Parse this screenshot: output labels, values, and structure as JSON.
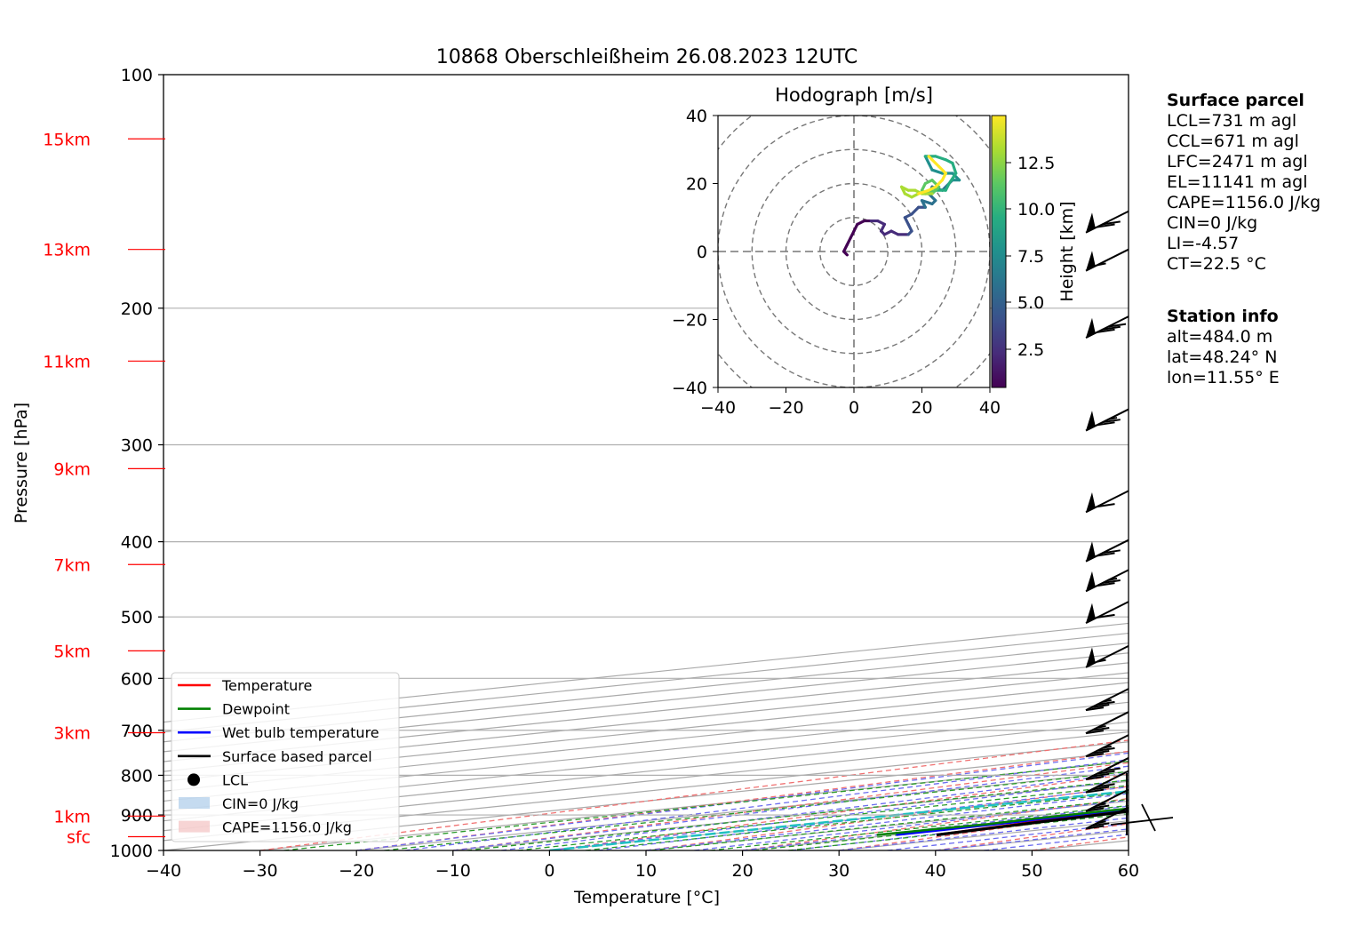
{
  "chart_data": {
    "type": "skew-t",
    "title": "10868 Oberschleißheim 26.08.2023 12UTC",
    "xlabel": "Temperature [°C]",
    "ylabel": "Pressure [hPa]",
    "xlim": [
      -40,
      60
    ],
    "ylim": [
      1000,
      100
    ],
    "x_ticks": [
      -40,
      -30,
      -20,
      -10,
      0,
      10,
      20,
      30,
      40,
      50,
      60
    ],
    "p_ticks": [
      1000,
      900,
      800,
      700,
      600,
      500,
      400,
      300,
      200,
      100
    ],
    "heights": [
      {
        "label": "sfc",
        "p": 960
      },
      {
        "label": "1km",
        "p": 903
      },
      {
        "label": "3km",
        "p": 705
      },
      {
        "label": "5km",
        "p": 553
      },
      {
        "label": "7km",
        "p": 428
      },
      {
        "label": "9km",
        "p": 322
      },
      {
        "label": "11km",
        "p": 234
      },
      {
        "label": "13km",
        "p": 168
      },
      {
        "label": "15km",
        "p": 121
      }
    ],
    "series": [
      {
        "name": "Temperature",
        "color": "#ff0000",
        "points": [
          [
            24.4,
            955
          ],
          [
            23,
            940
          ],
          [
            21.5,
            920
          ],
          [
            20.6,
            900
          ],
          [
            19.8,
            880
          ],
          [
            18.9,
            850
          ],
          [
            19,
            820
          ],
          [
            18.6,
            800
          ],
          [
            20,
            790
          ],
          [
            20.2,
            770
          ],
          [
            18.4,
            745
          ],
          [
            17.6,
            725
          ],
          [
            16.5,
            708
          ],
          [
            15.5,
            690
          ],
          [
            14.7,
            665
          ],
          [
            13.2,
            640
          ],
          [
            12,
            620
          ],
          [
            10.5,
            595
          ],
          [
            9.3,
            565
          ],
          [
            8.6,
            540
          ],
          [
            8.3,
            520
          ],
          [
            8.5,
            503
          ],
          [
            7.3,
            488
          ],
          [
            6.4,
            470
          ],
          [
            5.8,
            445
          ],
          [
            5.2,
            420
          ],
          [
            4.5,
            395
          ],
          [
            2.6,
            367
          ],
          [
            1.4,
            355
          ],
          [
            -0.5,
            340
          ],
          [
            -2,
            325
          ],
          [
            -3.4,
            310
          ],
          [
            -5.2,
            295
          ],
          [
            -6.8,
            275
          ],
          [
            -8.3,
            256
          ],
          [
            -9.8,
            238
          ],
          [
            -10.3,
            228
          ],
          [
            -10.8,
            219
          ],
          [
            -10.1,
            212
          ],
          [
            -9.5,
            206
          ],
          [
            -8,
            200
          ],
          [
            -6,
            196
          ],
          [
            -5.3,
            185
          ],
          [
            -3.6,
            177
          ],
          [
            -5.2,
            167
          ],
          [
            -3.2,
            158
          ],
          [
            -2.5,
            150
          ],
          [
            -1.5,
            142
          ],
          [
            -0.4,
            135
          ],
          [
            -0.7,
            128
          ],
          [
            0.7,
            124
          ],
          [
            2.6,
            120
          ]
        ]
      },
      {
        "name": "Dewpoint",
        "color": "#008000",
        "points": [
          [
            18.2,
            955
          ],
          [
            18.4,
            935
          ],
          [
            18.8,
            925
          ],
          [
            18,
            910
          ],
          [
            17.6,
            890
          ],
          [
            17.7,
            862
          ],
          [
            17,
            835
          ],
          [
            18.4,
            820
          ],
          [
            16.5,
            810
          ],
          [
            13.2,
            795
          ],
          [
            12.7,
            775
          ],
          [
            11,
            760
          ],
          [
            10.3,
            740
          ],
          [
            8.2,
            720
          ],
          [
            8.5,
            710
          ],
          [
            7.5,
            690
          ],
          [
            6.2,
            675
          ],
          [
            3.8,
            668
          ],
          [
            2,
            660
          ],
          [
            3.8,
            645
          ],
          [
            4,
            630
          ],
          [
            2,
            615
          ],
          [
            0.2,
            600
          ],
          [
            -0.8,
            582
          ],
          [
            -2,
            560
          ],
          [
            -0.7,
            550
          ],
          [
            -2.2,
            540
          ],
          [
            -3,
            530
          ],
          [
            -4.2,
            520
          ],
          [
            -2.8,
            508
          ],
          [
            -10.1,
            503
          ],
          [
            -4.8,
            500
          ],
          [
            -14,
            497
          ],
          [
            -9.6,
            490
          ],
          [
            -6.9,
            478
          ],
          [
            -2.5,
            466
          ],
          [
            -3,
            455
          ],
          [
            0,
            445
          ],
          [
            -3.5,
            430
          ],
          [
            -5,
            417
          ],
          [
            -5.9,
            405
          ],
          [
            -7.9,
            390
          ],
          [
            -9.2,
            378
          ],
          [
            -11.8,
            365
          ],
          [
            -14.7,
            357
          ],
          [
            -15.5,
            345
          ],
          [
            -16.9,
            332
          ],
          [
            -19.3,
            320
          ],
          [
            -16.5,
            310
          ],
          [
            -15.3,
            296
          ],
          [
            -16.6,
            281
          ],
          [
            -16.3,
            267
          ],
          [
            -17.6,
            258
          ],
          [
            -19.5,
            248
          ],
          [
            -20.3,
            237
          ],
          [
            -22.4,
            225
          ],
          [
            -23.7,
            213
          ],
          [
            -24.6,
            203
          ],
          [
            -26,
            193
          ],
          [
            -25.9,
            182
          ],
          [
            -25.5,
            172
          ],
          [
            -27.1,
            163
          ],
          [
            -27.5,
            155
          ],
          [
            -27,
            146
          ],
          [
            -26,
            138
          ],
          [
            -24.6,
            130
          ],
          [
            -23,
            122
          ]
        ]
      },
      {
        "name": "Wet bulb temperature",
        "color": "#0000ff",
        "points": [
          [
            20.2,
            955
          ],
          [
            19.6,
            920
          ],
          [
            19.3,
            890
          ],
          [
            18.6,
            862
          ],
          [
            17.4,
            820
          ],
          [
            16.9,
            800
          ],
          [
            16.3,
            780
          ],
          [
            15.5,
            760
          ],
          [
            14.7,
            742
          ],
          [
            13.8,
            722
          ],
          [
            12.6,
            708
          ],
          [
            11.1,
            690
          ],
          [
            10.1,
            675
          ],
          [
            9.3,
            650
          ],
          [
            8.4,
            632
          ],
          [
            8.2,
            610
          ],
          [
            7.3,
            590
          ],
          [
            6.1,
            565
          ],
          [
            5.3,
            545
          ],
          [
            4.6,
            525
          ],
          [
            4.2,
            505
          ],
          [
            3.8,
            493
          ],
          [
            3.3,
            470
          ],
          [
            3.4,
            445
          ],
          [
            3,
            420
          ],
          [
            1.9,
            405
          ],
          [
            0.5,
            390
          ],
          [
            -1,
            375
          ],
          [
            -3,
            355
          ],
          [
            -5.5,
            330
          ],
          [
            -7.6,
            305
          ],
          [
            -9.3,
            280
          ],
          [
            -10.4,
            258
          ],
          [
            -11.2,
            240
          ],
          [
            -11.2,
            225
          ],
          [
            -10.3,
            213
          ],
          [
            -9.5,
            205
          ],
          [
            -8.1,
            200
          ],
          [
            -6,
            196
          ],
          [
            -5.4,
            185
          ],
          [
            -3.8,
            177
          ],
          [
            -5.3,
            167
          ],
          [
            -3.3,
            158
          ],
          [
            -2.6,
            150
          ],
          [
            -1.6,
            142
          ],
          [
            -0.5,
            135
          ],
          [
            -0.8,
            128
          ],
          [
            0.6,
            124
          ],
          [
            2.5,
            120
          ]
        ]
      },
      {
        "name": "Surface based parcel",
        "color": "#000000",
        "points": [
          [
            24.4,
            955
          ],
          [
            22,
            920
          ],
          [
            19.8,
            880
          ],
          [
            19.5,
            850
          ],
          [
            18.7,
            800
          ],
          [
            17.7,
            750
          ],
          [
            16.6,
            700
          ],
          [
            15.2,
            650
          ],
          [
            13.5,
            600
          ],
          [
            11.5,
            550
          ],
          [
            9,
            500
          ],
          [
            5.8,
            450
          ],
          [
            1.7,
            400
          ],
          [
            -3.5,
            350
          ],
          [
            -10,
            300
          ],
          [
            -18.5,
            250
          ],
          [
            -23.5,
            225
          ],
          [
            -28,
            205
          ],
          [
            -30.5,
            190
          ],
          [
            -33,
            175
          ],
          [
            -35,
            160
          ],
          [
            -36.5,
            145
          ],
          [
            -37,
            135
          ],
          [
            -37,
            130
          ],
          [
            -36.8,
            125
          ],
          [
            -36.5,
            120
          ]
        ]
      }
    ],
    "lcl": {
      "t": 19.8,
      "p": 880
    },
    "legend": [
      "Temperature",
      "Dewpoint",
      "Wet bulb temperature",
      "Surface based parcel",
      "LCL",
      "CIN=0 J/kg",
      "CAPE=1156.0 J/kg"
    ],
    "legend_position": "lower-left",
    "wind_barbs": [
      {
        "p": 880,
        "speed": 25
      },
      {
        "p": 835,
        "speed": 25
      },
      {
        "p": 790,
        "speed": 30
      },
      {
        "p": 760,
        "speed": 40
      },
      {
        "p": 710,
        "speed": 35
      },
      {
        "p": 663,
        "speed": 25
      },
      {
        "p": 619,
        "speed": 35
      },
      {
        "p": 545,
        "speed": 55
      },
      {
        "p": 478,
        "speed": 60
      },
      {
        "p": 435,
        "speed": 75
      },
      {
        "p": 398,
        "speed": 70
      },
      {
        "p": 344,
        "speed": 60
      },
      {
        "p": 270,
        "speed": 75
      },
      {
        "p": 205,
        "speed": 80
      },
      {
        "p": 168,
        "speed": 55
      },
      {
        "p": 150,
        "speed": 70
      }
    ],
    "hodograph": {
      "title": "Hodograph [m/s]",
      "xlim": [
        -40,
        40
      ],
      "ylim": [
        -40,
        40
      ],
      "ticks": [
        -40,
        -20,
        0,
        20,
        40
      ],
      "colorbar_label": "Height [km]",
      "colorbar_ticks": [
        "2.5",
        "5.0",
        "7.5",
        "10.0",
        "12.5"
      ],
      "points": [
        [
          -2,
          -1
        ],
        [
          -3,
          0
        ],
        [
          -2,
          2
        ],
        [
          -1,
          4
        ],
        [
          0,
          6
        ],
        [
          1,
          8
        ],
        [
          3,
          9
        ],
        [
          5,
          9
        ],
        [
          7,
          9
        ],
        [
          9,
          8
        ],
        [
          8,
          6
        ],
        [
          9,
          5
        ],
        [
          11,
          6
        ],
        [
          13,
          5
        ],
        [
          16,
          5
        ],
        [
          17,
          6
        ],
        [
          16,
          8
        ],
        [
          15,
          10
        ],
        [
          17,
          11
        ],
        [
          19,
          13
        ],
        [
          21,
          13
        ],
        [
          20,
          15
        ],
        [
          23,
          14
        ],
        [
          24,
          15
        ],
        [
          22,
          17
        ],
        [
          23,
          19
        ],
        [
          26,
          18
        ],
        [
          29,
          21
        ],
        [
          31,
          21
        ],
        [
          29,
          23
        ],
        [
          26,
          23
        ],
        [
          23,
          24
        ],
        [
          22,
          26
        ],
        [
          21,
          28
        ],
        [
          24,
          28
        ],
        [
          27,
          27
        ],
        [
          29,
          26
        ],
        [
          30,
          23
        ],
        [
          28,
          20
        ],
        [
          27,
          18
        ],
        [
          24,
          18
        ],
        [
          21,
          17
        ],
        [
          20,
          18
        ],
        [
          21,
          20
        ],
        [
          23,
          21
        ],
        [
          25,
          19
        ],
        [
          23,
          17
        ],
        [
          20,
          17
        ],
        [
          18,
          18
        ],
        [
          16,
          18
        ],
        [
          14,
          19
        ],
        [
          15,
          17
        ],
        [
          17,
          16
        ],
        [
          19,
          17
        ],
        [
          22,
          18
        ],
        [
          24,
          19
        ],
        [
          26,
          21
        ],
        [
          27,
          23
        ],
        [
          25,
          25
        ],
        [
          23,
          27
        ],
        [
          22,
          28
        ]
      ]
    }
  },
  "info": {
    "parcel_title": "Surface parcel",
    "lcl": "LCL=731 m agl",
    "ccl": "CCL=671 m agl",
    "lfc": "LFC=2471 m agl",
    "el": "EL=11141 m agl",
    "cape": "CAPE=1156.0 J/kg",
    "cin": "CIN=0 J/kg",
    "li": "LI=-4.57",
    "ct": "CT=22.5 °C",
    "station_title": "Station info",
    "alt": "alt=484.0 m",
    "lat": "lat=48.24° N",
    "lon": "lon=11.55° E"
  }
}
